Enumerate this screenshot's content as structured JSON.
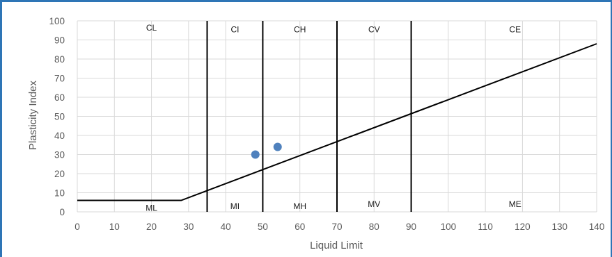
{
  "chart_data": {
    "type": "scatter",
    "title": "",
    "xlabel": "Liquid Limit",
    "ylabel": "Plasticity Index",
    "xlim": [
      0,
      140
    ],
    "ylim": [
      0,
      100
    ],
    "x_ticks": [
      0,
      10,
      20,
      30,
      40,
      50,
      60,
      70,
      80,
      90,
      100,
      110,
      120,
      130,
      140
    ],
    "y_ticks": [
      0,
      10,
      20,
      30,
      40,
      50,
      60,
      70,
      80,
      90,
      100
    ],
    "grid": true,
    "legend": "none",
    "colors": {
      "points": "#4f81bd",
      "lines": "#000000",
      "grid": "#d9d9d9",
      "frame": "#2e75b6"
    },
    "series": [
      {
        "values": [
          {
            "x": 48,
            "y": 30
          },
          {
            "x": 54,
            "y": 34
          }
        ]
      }
    ],
    "a_line": [
      [
        0,
        6
      ],
      [
        28,
        6
      ],
      [
        140,
        88
      ]
    ],
    "boundary_lines": [
      35,
      50,
      70,
      90
    ],
    "zone_labels_above": [
      {
        "text": "CL",
        "x": 20,
        "y": 95
      },
      {
        "text": "CI",
        "x": 42.5,
        "y": 94
      },
      {
        "text": "CH",
        "x": 60,
        "y": 94
      },
      {
        "text": "CV",
        "x": 80,
        "y": 94
      },
      {
        "text": "CE",
        "x": 118,
        "y": 94
      }
    ],
    "zone_labels_below": [
      {
        "text": "ML",
        "x": 20,
        "y": 0.5
      },
      {
        "text": "MI",
        "x": 42.5,
        "y": 1.5
      },
      {
        "text": "MH",
        "x": 60,
        "y": 1.5
      },
      {
        "text": "MV",
        "x": 80,
        "y": 2.5
      },
      {
        "text": "ME",
        "x": 118,
        "y": 2.5
      }
    ]
  }
}
